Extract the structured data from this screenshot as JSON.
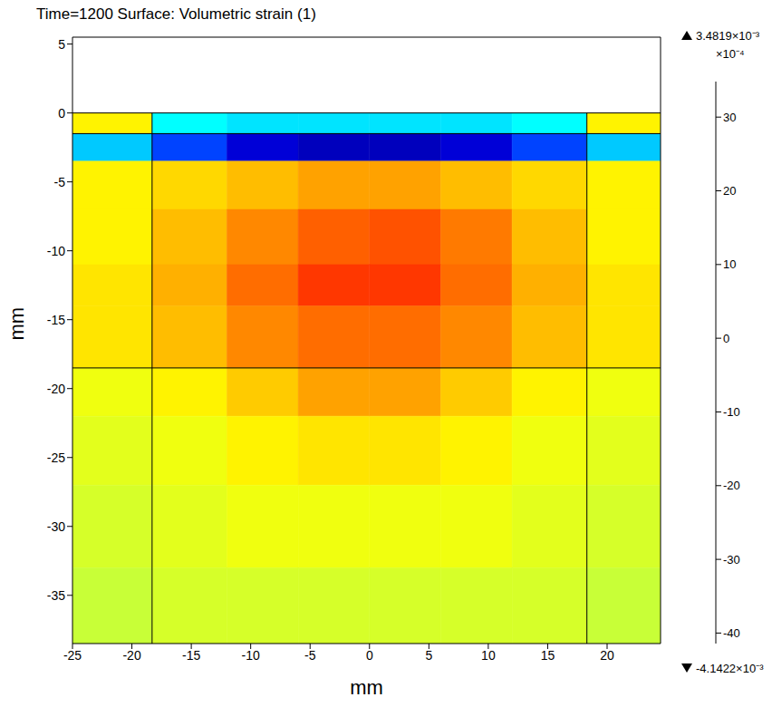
{
  "chart_data": {
    "type": "heatmap",
    "title": "Time=1200  Surface: Volumetric strain (1)",
    "xlabel": "mm",
    "ylabel": "mm",
    "xlim": [
      -25,
      24.5
    ],
    "ylim": [
      -38.5,
      5.5
    ],
    "xticks": [
      -25,
      -20,
      -15,
      -10,
      -5,
      0,
      5,
      10,
      15,
      20
    ],
    "yticks": [
      -35,
      -30,
      -25,
      -20,
      -15,
      -10,
      -5,
      0,
      5
    ],
    "grid": false,
    "heatmap": {
      "x_edges": [
        -25,
        -18.3,
        -12,
        -6,
        0,
        6,
        12,
        18.3,
        24.5
      ],
      "y_edges": [
        0,
        -1.5,
        -3.5,
        -7,
        -11,
        -14,
        -18.5,
        -22,
        -27,
        -33,
        -38.5
      ],
      "values": [
        [
          6,
          -14,
          -16,
          -16,
          -16,
          -16,
          -14,
          6
        ],
        [
          -18,
          -28,
          -36,
          -38,
          -38,
          -36,
          -28,
          -18
        ],
        [
          6,
          8,
          10,
          12,
          12,
          10,
          8,
          6
        ],
        [
          6,
          10,
          14,
          17,
          18,
          15,
          10,
          6
        ],
        [
          7,
          11,
          16,
          20,
          20,
          16,
          11,
          7
        ],
        [
          7,
          10,
          14,
          16,
          16,
          14,
          10,
          7
        ],
        [
          4,
          6,
          9,
          12,
          12,
          9,
          6,
          4
        ],
        [
          3,
          4,
          6,
          7,
          7,
          6,
          4,
          3
        ],
        [
          2,
          3,
          4,
          4,
          4,
          4,
          3,
          2
        ],
        [
          1,
          2,
          2,
          2,
          2,
          2,
          2,
          1
        ]
      ]
    },
    "colorbar": {
      "range": [
        -41.422,
        34.819
      ],
      "ticks": [
        -40,
        -30,
        -20,
        -10,
        0,
        10,
        20,
        30
      ],
      "factor_label": "×10⁻⁴",
      "max_label": "3.4819×10⁻³",
      "min_label": "-4.1422×10⁻³"
    },
    "boundaries": [
      [
        [
          -18.3,
          -38.5
        ],
        [
          -18.3,
          0
        ]
      ],
      [
        [
          18.3,
          -38.5
        ],
        [
          18.3,
          0
        ]
      ],
      [
        [
          -25,
          -18.5
        ],
        [
          24.5,
          -18.5
        ]
      ],
      [
        [
          -25,
          0
        ],
        [
          24.5,
          0
        ]
      ],
      [
        [
          -25,
          -1.5
        ],
        [
          24.5,
          -1.5
        ]
      ]
    ]
  }
}
